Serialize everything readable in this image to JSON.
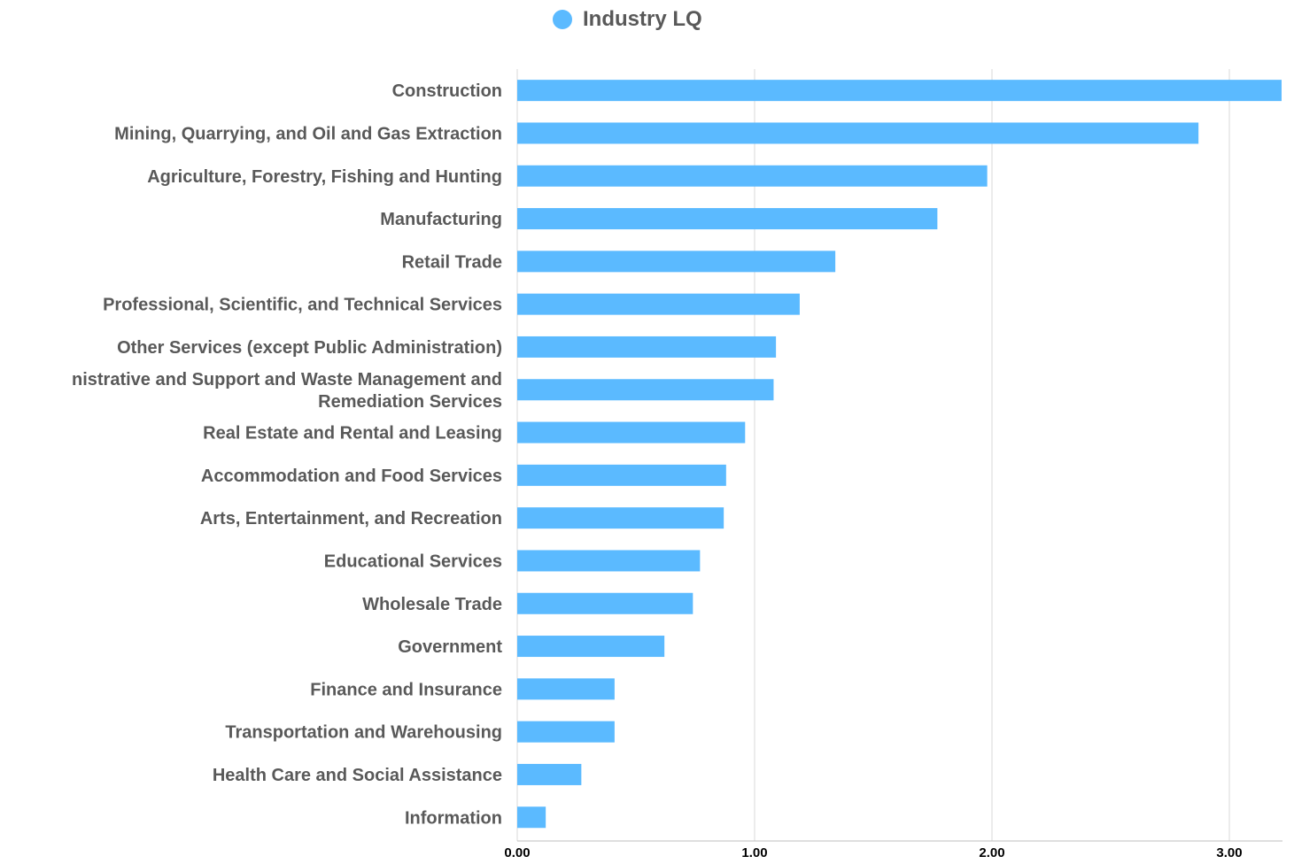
{
  "chart_data": {
    "type": "bar",
    "orientation": "horizontal",
    "legend": {
      "label": "Industry LQ",
      "placement": "top-center"
    },
    "categories": [
      "Construction",
      "Mining, Quarrying, and Oil and Gas Extraction",
      "Agriculture, Forestry, Fishing and Hunting",
      "Manufacturing",
      "Retail Trade",
      "Professional, Scientific, and Technical Services",
      "Other Services (except  Public Administration)",
      "nistrative and Support and Waste Management and\nRemediation  Services",
      "Real Estate and Rental and Leasing",
      "Accommodation and Food Services",
      "Arts,  Entertainment,  and Recreation",
      "Educational  Services",
      "Wholesale  Trade",
      "Government",
      "Finance and Insurance",
      "Transportation  and  Warehousing",
      "Health Care and Social Assistance",
      "Information"
    ],
    "series": [
      {
        "name": "Industry LQ",
        "color": "#5bbaff",
        "values": [
          3.22,
          2.87,
          1.98,
          1.77,
          1.34,
          1.19,
          1.09,
          1.08,
          0.96,
          0.88,
          0.87,
          0.77,
          0.74,
          0.62,
          0.41,
          0.41,
          0.27,
          0.12
        ]
      }
    ],
    "x_ticks": [
      "0.00",
      "1.00",
      "2.00",
      "3.00"
    ],
    "xlim": [
      0,
      3.23
    ],
    "grid": "vertical",
    "title": "",
    "xlabel": "",
    "ylabel": ""
  }
}
